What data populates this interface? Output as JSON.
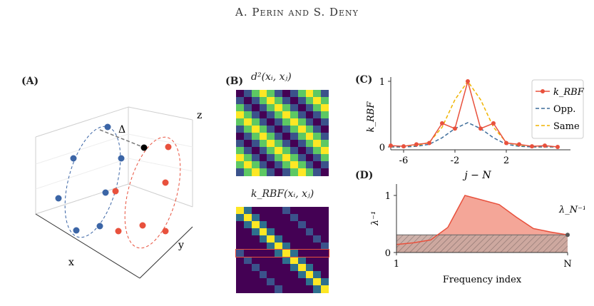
{
  "header": "A. Perin and S. Deny",
  "panels": {
    "a": {
      "label": "(A)",
      "axis_x": "x",
      "axis_y": "y",
      "axis_z": "z",
      "delta": "Δ"
    },
    "b": {
      "label": "(B)",
      "top_title": "d²(xᵢ, xⱼ)",
      "bottom_title": "k_RBF(xᵢ, xⱼ)"
    },
    "c": {
      "label": "(C)",
      "ylabel": "k_RBF",
      "xlabel": "j − N",
      "xticks": [
        "-6",
        "-2",
        "2"
      ],
      "yticks": [
        "0",
        "1"
      ],
      "legend": [
        "k_RBF",
        "Opp.",
        "Same"
      ]
    },
    "d": {
      "label": "(D)",
      "ylabel": "λ⁻¹",
      "xlabel": "Frequency index",
      "xticks": [
        "1",
        "N"
      ],
      "yticks": [
        "0",
        "1"
      ],
      "annotation": "λ_N⁻¹"
    }
  },
  "colors": {
    "blue": "#3b65a6",
    "red": "#e8513d",
    "gold": "#f0b400",
    "dash_blue": "#3d6d9a"
  },
  "chart_data": [
    {
      "panel": "C",
      "type": "line",
      "x": [
        -7,
        -6,
        -5,
        -4,
        -3,
        -2,
        -1,
        0,
        1,
        2,
        3,
        4,
        5,
        6
      ],
      "series": [
        {
          "name": "k_RBF",
          "values": [
            0.02,
            0.01,
            0.04,
            0.06,
            0.36,
            0.28,
            1.0,
            0.28,
            0.36,
            0.06,
            0.04,
            0.01,
            0.02,
            0.0
          ]
        },
        {
          "name": "Opp.",
          "values": [
            0.0,
            0.0,
            0.01,
            0.04,
            0.14,
            0.28,
            0.37,
            0.28,
            0.14,
            0.04,
            0.01,
            0.0,
            0.0,
            0.0
          ]
        },
        {
          "name": "Same",
          "values": [
            0.0,
            0.0,
            0.02,
            0.07,
            0.3,
            0.72,
            1.0,
            0.72,
            0.3,
            0.07,
            0.02,
            0.0,
            0.0,
            0.0
          ]
        }
      ],
      "ylim": [
        0,
        1
      ],
      "xlim": [
        -7,
        7
      ]
    },
    {
      "panel": "D",
      "type": "area",
      "x": [
        0,
        0.1,
        0.2,
        0.3,
        0.4,
        0.5,
        0.6,
        0.7,
        0.8,
        0.9,
        1.0
      ],
      "values": [
        0.14,
        0.17,
        0.22,
        0.44,
        1.0,
        0.92,
        0.84,
        0.62,
        0.42,
        0.36,
        0.31
      ],
      "baseline": 0.31,
      "ylim": [
        0,
        1.2
      ]
    }
  ]
}
